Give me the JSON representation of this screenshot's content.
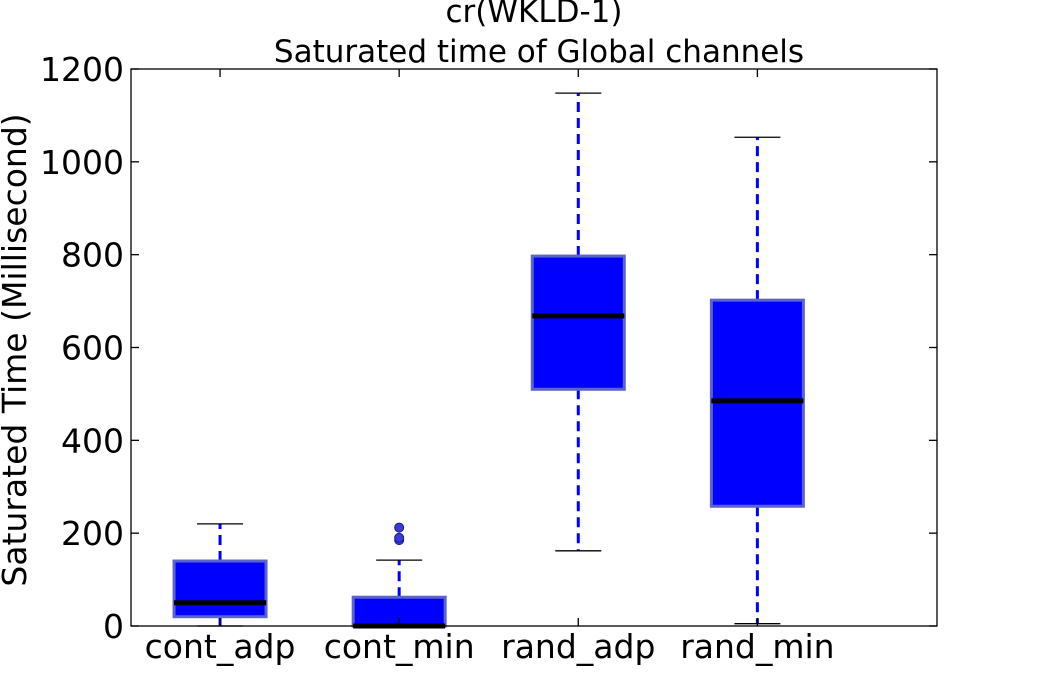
{
  "chart_data": {
    "type": "box",
    "title": "cr(WKLD-1)",
    "subtitle": "Saturated time of Global channels",
    "xlabel": "",
    "ylabel": "Saturated Time (Millisecond)",
    "ylim": [
      0,
      1200
    ],
    "yticks": [
      0,
      200,
      400,
      600,
      800,
      1000,
      1200
    ],
    "grid": false,
    "legend": "none",
    "categories": [
      "cont_adp",
      "cont_min",
      "rand_adp",
      "rand_min"
    ],
    "boxes": [
      {
        "category": "cont_adp",
        "whisker_low": 0,
        "q1": 20,
        "median": 50,
        "q3": 140,
        "whisker_high": 220,
        "outliers": []
      },
      {
        "category": "cont_min",
        "whisker_low": 0,
        "q1": 0,
        "median": 0,
        "q3": 62,
        "whisker_high": 142,
        "outliers": [
          185,
          190,
          212
        ]
      },
      {
        "category": "rand_adp",
        "whisker_low": 162,
        "q1": 510,
        "median": 668,
        "q3": 797,
        "whisker_high": 1148,
        "outliers": []
      },
      {
        "category": "rand_min",
        "whisker_low": 5,
        "q1": 258,
        "median": 485,
        "q3": 702,
        "whisker_high": 1053,
        "outliers": []
      }
    ],
    "colors": {
      "box_fill": "#0000ff",
      "box_edge": "#5a64cc",
      "whisker": "#0000ff",
      "median": "#000000",
      "outlier": "#3b3bdb"
    }
  }
}
